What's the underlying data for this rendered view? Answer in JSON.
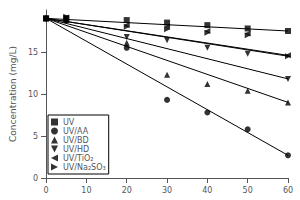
{
  "chart_data": {
    "type": "scatter",
    "ylabel": "Concentration (mg/L)",
    "xlim": [
      0,
      60
    ],
    "ylim": [
      0,
      20
    ],
    "xticks": [
      0,
      10,
      20,
      30,
      40,
      50,
      60
    ],
    "yticks": [
      0,
      5,
      10,
      15
    ],
    "grid": false,
    "legend": "lower left",
    "x": [
      0,
      5,
      20,
      30,
      40,
      50,
      60
    ],
    "series": [
      {
        "name": "UV",
        "color": "#000000",
        "marker": "square",
        "values": [
          19.0,
          19.0,
          18.8,
          18.5,
          18.2,
          17.8,
          17.5
        ],
        "line_x": [
          0,
          60
        ],
        "line_y": [
          19.0,
          17.5
        ]
      },
      {
        "name": "UV/AA",
        "color": "#000000",
        "marker": "circle",
        "values": [
          19.0,
          18.8,
          15.5,
          9.3,
          7.8,
          5.8,
          2.7
        ],
        "line_x": [
          0,
          60
        ],
        "line_y": [
          19.0,
          2.7
        ]
      },
      {
        "name": "UV/BD",
        "color": "#000000",
        "marker": "triangle-up",
        "values": [
          19.0,
          18.8,
          16.1,
          12.3,
          11.2,
          10.4,
          9.0
        ],
        "line_x": [
          0,
          60
        ],
        "line_y": [
          19.0,
          9.0
        ]
      },
      {
        "name": "UV/HD",
        "color": "#000000",
        "marker": "triangle-down",
        "values": [
          19.0,
          19.0,
          16.8,
          16.4,
          15.5,
          14.8,
          11.8
        ],
        "line_x": [
          0,
          60
        ],
        "line_y": [
          19.0,
          11.8
        ]
      },
      {
        "name": "UV/TiO₂",
        "color": "#000000",
        "marker": "triangle-left",
        "values": [
          19.0,
          19.1,
          18.2,
          18.0,
          17.5,
          17.2,
          14.6
        ],
        "line_x": [
          0,
          60
        ],
        "line_y": [
          19.0,
          14.6
        ]
      },
      {
        "name": "UV/Na₂SO₃",
        "color": "#000000",
        "marker": "triangle-right",
        "values": [
          19.0,
          19.2,
          18.0,
          17.7,
          17.3,
          17.0,
          14.5
        ],
        "line_x": [
          0,
          60
        ],
        "line_y": [
          19.0,
          14.5
        ]
      }
    ]
  }
}
